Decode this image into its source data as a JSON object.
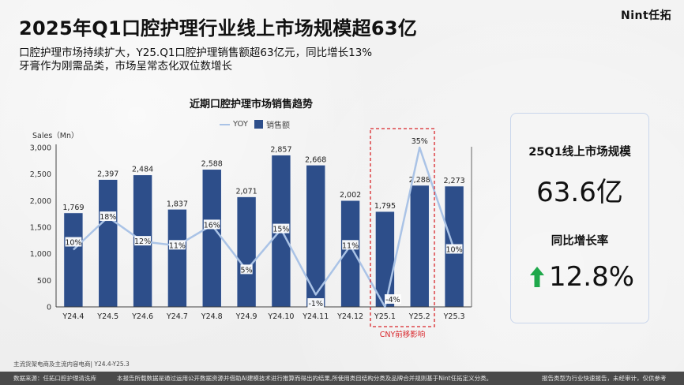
{
  "header": {
    "logo": "Nint任拓",
    "title": "2025年Q1口腔护理行业线上市场规模超63亿",
    "subtitle_lines": [
      "口腔护理市场持续扩大，Y25.Q1口腔护理销售额超63亿元，同比增长13%",
      "牙膏作为刚需品类，市场呈常态化双位数增长"
    ]
  },
  "chart": {
    "title": "近期口腔护理市场销售趋势",
    "y_axis_label": "Sales（Mn）",
    "legend": {
      "line": "YOY",
      "bar": "销售额"
    },
    "highlight_note": "CNY前移影响"
  },
  "chart_data": {
    "type": "bar",
    "title": "近期口腔护理市场销售趋势",
    "xlabel": "",
    "ylabel": "Sales（Mn）",
    "ylim": [
      0,
      3000
    ],
    "yticks": [
      "0",
      "500",
      "1,000",
      "1,500",
      "2,000",
      "2,500",
      "3,000"
    ],
    "categories": [
      "Y24.4",
      "Y24.5",
      "Y24.6",
      "Y24.7",
      "Y24.8",
      "Y24.9",
      "Y24.10",
      "Y24.11",
      "Y24.12",
      "Y25.1",
      "Y25.2",
      "Y25.3"
    ],
    "series": [
      {
        "name": "销售额",
        "type": "bar",
        "color": "#2d4e8a",
        "values": [
          1769,
          2397,
          2484,
          1837,
          2588,
          2071,
          2857,
          2668,
          2002,
          1795,
          2288,
          2273
        ],
        "labels": [
          "1,769",
          "2,397",
          "2,484",
          "1,837",
          "2,588",
          "2,071",
          "2,857",
          "2,668",
          "2,002",
          "1,795",
          "2,288",
          "2,273"
        ]
      },
      {
        "name": "YOY",
        "type": "line",
        "color": "#aac3e6",
        "unit": "%",
        "values": [
          10,
          18,
          12,
          11,
          16,
          5,
          15,
          -1,
          11,
          -4,
          35,
          10
        ],
        "labels": [
          "10%",
          "18%",
          "12%",
          "11%",
          "16%",
          "5%",
          "15%",
          "-1%",
          "11%",
          "-4%",
          "35%",
          "10%"
        ]
      }
    ],
    "legend_position": "top",
    "grid": false,
    "annotation": {
      "text": "CNY前移影响",
      "range": [
        "Y25.1",
        "Y25.2"
      ],
      "color": "#d9262b"
    }
  },
  "kpi": {
    "label1": "25Q1线上市场规模",
    "value1": "63.6亿",
    "label2": "同比增长率",
    "value2": "12.8%",
    "arrow_color": "#1fa84b"
  },
  "footer": {
    "source_note": "主流货架电商及主流内容电商| Y24.4-Y25.3",
    "data_source": "数据来源：任拓口腔护理清洗库",
    "disclaimer": "本报告所载数据是通过运用公开数据资源并借助AI建模技术进行推算而得出的结果,所使用类目结构分类及品牌合并规则基于Nint任拓定义分类。",
    "report_type": "报告类型为行业快速报告，未经审计，仅供参考"
  }
}
